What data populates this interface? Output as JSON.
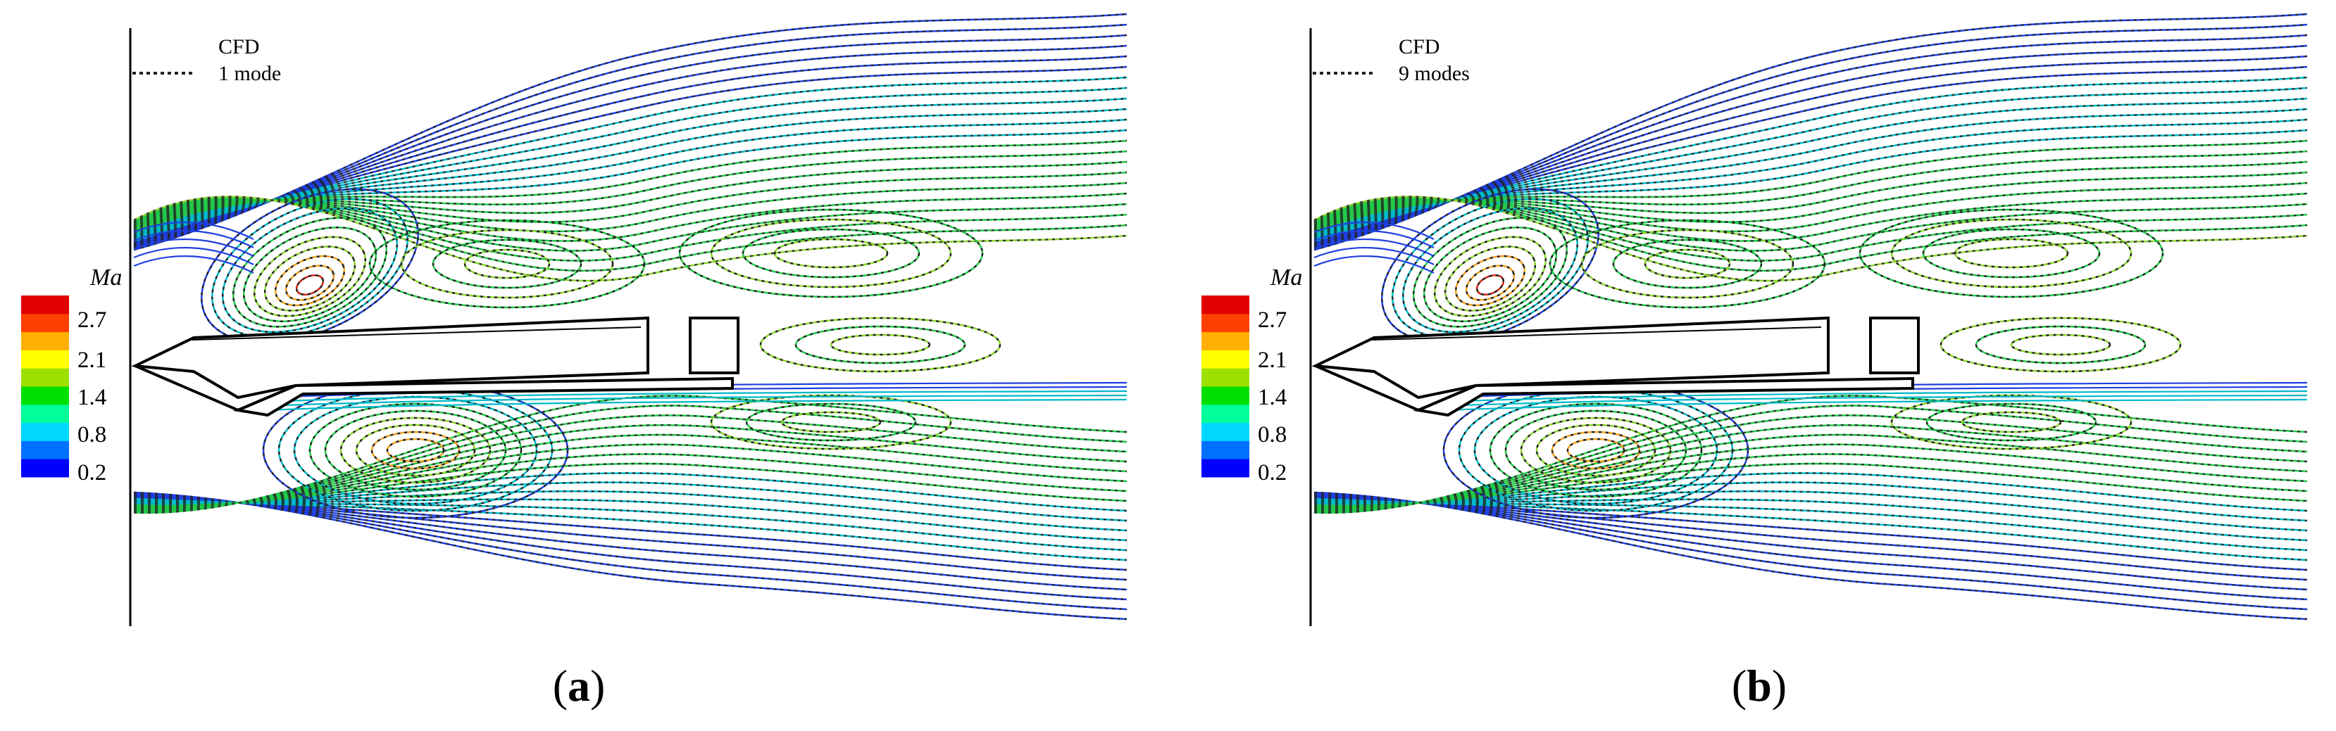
{
  "figure": {
    "colorbar": {
      "title": "Ma",
      "ticks": [
        "2.7",
        "2.1",
        "1.4",
        "0.8",
        "0.2"
      ],
      "colors": [
        "#0000ff",
        "#0070ff",
        "#00d7ff",
        "#00ff9a",
        "#00e000",
        "#9ee000",
        "#ffff00",
        "#ffb000",
        "#ff4000",
        "#e00000"
      ]
    },
    "panels": [
      {
        "id": "a",
        "legend": {
          "solid_label": "CFD",
          "dashed_label": "1 mode"
        },
        "caption": {
          "open": "(",
          "letter": "a",
          "close": ")"
        }
      },
      {
        "id": "b",
        "legend": {
          "solid_label": "CFD",
          "dashed_label": "9 modes"
        },
        "caption": {
          "open": "(",
          "letter": "b",
          "close": ")"
        }
      }
    ],
    "line_colors": {
      "outer": "#1f3fe0",
      "mid": "#00b8c8",
      "inner": "#22c84a",
      "core": "#8bd630",
      "hot": "#f0a020",
      "peak": "#d02010",
      "dashed": "#222222",
      "body": "#000000"
    }
  }
}
